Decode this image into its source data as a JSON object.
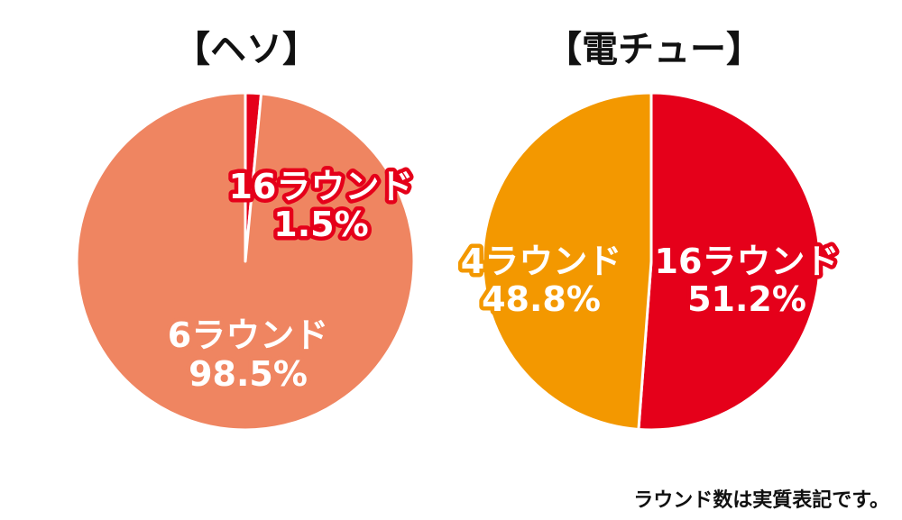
{
  "chart_data": [
    {
      "type": "pie",
      "title": "【ヘソ】",
      "slices": [
        {
          "label": "16ラウンド",
          "value": 1.5,
          "value_label": "1.5%",
          "color": "#e5001a"
        },
        {
          "label": "6ラウンド",
          "value": 98.5,
          "value_label": "98.5%",
          "color": "#ef8561"
        }
      ]
    },
    {
      "type": "pie",
      "title": "【電チュー】",
      "slices": [
        {
          "label": "16ラウンド",
          "value": 51.2,
          "value_label": "51.2%",
          "color": "#e5001a"
        },
        {
          "label": "4ラウンド",
          "value": 48.8,
          "value_label": "48.8%",
          "color": "#f39800"
        }
      ]
    }
  ],
  "footnote": "ラウンド数は実質表記です。"
}
